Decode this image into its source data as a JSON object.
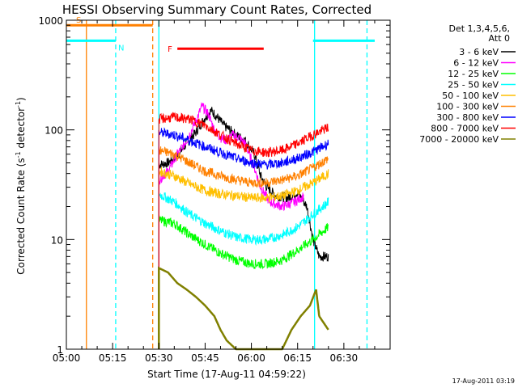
{
  "chart_data": {
    "type": "line",
    "title": "HESSI Observing Summary Count Rates, Corrected",
    "xlabel": "Start Time (17-Aug-11 04:59:22)",
    "ylabel_main": "Corrected Count Rate (s",
    "ylabel_sup1": "-1",
    "ylabel_mid": " detector",
    "ylabel_sup2": "-1",
    "ylabel_end": ")",
    "y_scale": "log",
    "ylim": [
      1,
      1000
    ],
    "x_tick_labels": [
      "05:00",
      "05:15",
      "05:30",
      "05:45",
      "06:00",
      "06:15",
      "06:30"
    ],
    "x_tick_minutes": [
      0,
      15,
      30,
      45,
      60,
      75,
      90
    ],
    "xlim_minutes": [
      0,
      105
    ],
    "y_tick_labels": [
      "1000",
      "100",
      "10",
      "1"
    ],
    "y_tick_values": [
      1000,
      100,
      10,
      1
    ],
    "legend_header": [
      "Det 1,3,4,5,6,",
      "Att 0"
    ],
    "legend_placement": "outside-right",
    "footer_date": "17-Aug-2011 03:19",
    "data_start_minute": 30,
    "data_end_minute": 85,
    "flags": [
      {
        "label": "S",
        "color": "#ff8000",
        "start": 0,
        "end": 28,
        "level": 900
      },
      {
        "label": "N",
        "color": "#00ffff",
        "start": -2,
        "end": 16,
        "level": 650
      },
      {
        "label": "N",
        "color": "#00ffff",
        "start": 80,
        "end": 100,
        "level": 650
      },
      {
        "label": "F",
        "color": "#ff0000",
        "start": 36,
        "end": 64,
        "level": 550
      }
    ],
    "vlines": [
      {
        "minute": 6.5,
        "color": "#ff8000",
        "dash": false
      },
      {
        "minute": 16,
        "color": "#00ffff",
        "dash": true
      },
      {
        "minute": 28,
        "color": "#ff8000",
        "dash": true
      },
      {
        "minute": 30,
        "color": "#00ffff",
        "dash": false
      },
      {
        "minute": 80.5,
        "color": "#00ffff",
        "dash": false
      },
      {
        "minute": 97.5,
        "color": "#00ffff",
        "dash": true
      }
    ],
    "series": [
      {
        "name": "3 - 6 keV",
        "color": "#000000",
        "points": [
          [
            30,
            48
          ],
          [
            33,
            50
          ],
          [
            36,
            58
          ],
          [
            39,
            75
          ],
          [
            42,
            95
          ],
          [
            45,
            130
          ],
          [
            47,
            150
          ],
          [
            49,
            130
          ],
          [
            51,
            110
          ],
          [
            53,
            100
          ],
          [
            55,
            90
          ],
          [
            58,
            80
          ],
          [
            61,
            60
          ],
          [
            63,
            38
          ],
          [
            65,
            30
          ],
          [
            68,
            25
          ],
          [
            72,
            24
          ],
          [
            75,
            27
          ],
          [
            78,
            20
          ],
          [
            80,
            10
          ],
          [
            82,
            7
          ],
          [
            85,
            7
          ]
        ]
      },
      {
        "name": "6 - 12 keV",
        "color": "#ff00ff",
        "points": [
          [
            30,
            35
          ],
          [
            33,
            42
          ],
          [
            36,
            60
          ],
          [
            39,
            80
          ],
          [
            42,
            120
          ],
          [
            44,
            165
          ],
          [
            46,
            140
          ],
          [
            48,
            100
          ],
          [
            50,
            85
          ],
          [
            52,
            80
          ],
          [
            54,
            90
          ],
          [
            56,
            85
          ],
          [
            58,
            75
          ],
          [
            61,
            45
          ],
          [
            63,
            30
          ],
          [
            66,
            22
          ],
          [
            70,
            20
          ],
          [
            74,
            22
          ],
          [
            77,
            25
          ]
        ]
      },
      {
        "name": "12 - 25 keV",
        "color": "#00ff00",
        "points": [
          [
            30,
            15
          ],
          [
            35,
            14
          ],
          [
            40,
            11
          ],
          [
            45,
            9
          ],
          [
            50,
            7.5
          ],
          [
            55,
            6.5
          ],
          [
            60,
            6
          ],
          [
            65,
            6
          ],
          [
            70,
            6.5
          ],
          [
            75,
            8
          ],
          [
            80,
            10
          ],
          [
            85,
            13
          ]
        ]
      },
      {
        "name": "25 - 50 keV",
        "color": "#00ffff",
        "points": [
          [
            30,
            26
          ],
          [
            35,
            22
          ],
          [
            40,
            17
          ],
          [
            45,
            14
          ],
          [
            50,
            12
          ],
          [
            55,
            10.5
          ],
          [
            60,
            10
          ],
          [
            65,
            10
          ],
          [
            70,
            11
          ],
          [
            75,
            13
          ],
          [
            80,
            17
          ],
          [
            85,
            22
          ]
        ]
      },
      {
        "name": "50 - 100 keV",
        "color": "#ffbf00",
        "points": [
          [
            30,
            42
          ],
          [
            35,
            38
          ],
          [
            40,
            32
          ],
          [
            45,
            28
          ],
          [
            50,
            26
          ],
          [
            55,
            25
          ],
          [
            60,
            24
          ],
          [
            65,
            24
          ],
          [
            70,
            25
          ],
          [
            75,
            28
          ],
          [
            80,
            33
          ],
          [
            85,
            40
          ]
        ]
      },
      {
        "name": "100 - 300 keV",
        "color": "#ff8000",
        "points": [
          [
            30,
            65
          ],
          [
            35,
            60
          ],
          [
            40,
            50
          ],
          [
            45,
            42
          ],
          [
            50,
            38
          ],
          [
            55,
            35
          ],
          [
            60,
            33
          ],
          [
            65,
            33
          ],
          [
            70,
            35
          ],
          [
            75,
            38
          ],
          [
            80,
            45
          ],
          [
            85,
            55
          ]
        ]
      },
      {
        "name": "300 - 800 keV",
        "color": "#0000ff",
        "points": [
          [
            30,
            95
          ],
          [
            35,
            90
          ],
          [
            40,
            80
          ],
          [
            45,
            70
          ],
          [
            50,
            62
          ],
          [
            55,
            55
          ],
          [
            60,
            50
          ],
          [
            65,
            48
          ],
          [
            70,
            50
          ],
          [
            75,
            55
          ],
          [
            80,
            63
          ],
          [
            85,
            75
          ]
        ]
      },
      {
        "name": "800 - 7000 keV",
        "color": "#ff0000",
        "points": [
          [
            30,
            125
          ],
          [
            35,
            130
          ],
          [
            40,
            125
          ],
          [
            45,
            110
          ],
          [
            50,
            90
          ],
          [
            55,
            75
          ],
          [
            60,
            65
          ],
          [
            65,
            62
          ],
          [
            70,
            65
          ],
          [
            75,
            75
          ],
          [
            80,
            90
          ],
          [
            85,
            105
          ]
        ]
      },
      {
        "name": "7000 - 20000 keV",
        "color": "#808000",
        "points": [
          [
            30,
            5.5
          ],
          [
            33,
            5
          ],
          [
            36,
            4
          ],
          [
            39,
            3.5
          ],
          [
            42,
            3
          ],
          [
            45,
            2.5
          ],
          [
            48,
            2
          ],
          [
            50,
            1.5
          ],
          [
            52,
            1.2
          ],
          [
            55,
            1
          ],
          [
            60,
            1
          ],
          [
            65,
            1
          ],
          [
            70,
            1
          ],
          [
            73,
            1.5
          ],
          [
            76,
            2
          ],
          [
            79,
            2.5
          ],
          [
            81,
            3.5
          ],
          [
            82,
            2
          ],
          [
            85,
            1.5
          ]
        ]
      }
    ]
  }
}
